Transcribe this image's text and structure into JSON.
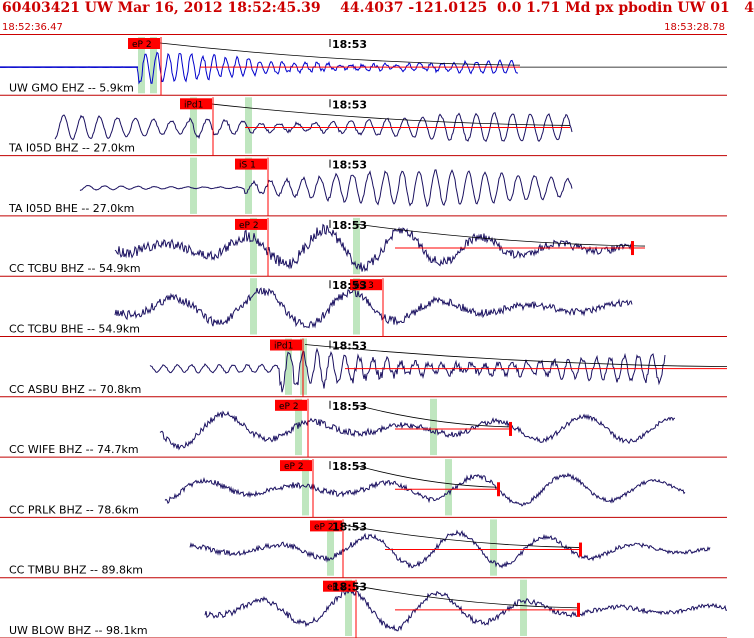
{
  "header": {
    "title": "60403421 UW Mar 16, 2012 18:52:45.39    44.4037 -121.0125  0.0 1.71 Md px pbodin UW 01   4",
    "start_time": "18:52:36.47",
    "end_time": "18:53:28.78"
  },
  "colors": {
    "header_text": "#cc0000",
    "pick_box": "#ff0000",
    "pick_band": "#bfe6bf",
    "trace_ink": "#1a1060",
    "first_trace": "#0000cc",
    "coda_line": "#000000"
  },
  "minute_mark": "18:53",
  "traces": [
    {
      "label": "UW GMO EHZ -- 5.9km",
      "pick": "eP 2"
    },
    {
      "label": "TA I05D BHZ -- 27.0km",
      "pick": "iPd1"
    },
    {
      "label": "TA I05D BHE -- 27.0km",
      "pick": "iS 1"
    },
    {
      "label": "CC TCBU BHZ -- 54.9km",
      "pick": "eP 2"
    },
    {
      "label": "CC TCBU BHE -- 54.9km",
      "pick": "eS 3"
    },
    {
      "label": "CC ASBU BHZ -- 70.8km",
      "pick": "iPd1"
    },
    {
      "label": "CC WIFE BHZ -- 74.7km",
      "pick": "eP 2"
    },
    {
      "label": "CC PRLK BHZ -- 78.6km",
      "pick": "eP 2"
    },
    {
      "label": "CC TMBU BHZ -- 89.8km",
      "pick": "eP 2"
    },
    {
      "label": "UW BLOW BHZ -- 98.1km",
      "pick": "eP 2"
    }
  ]
}
